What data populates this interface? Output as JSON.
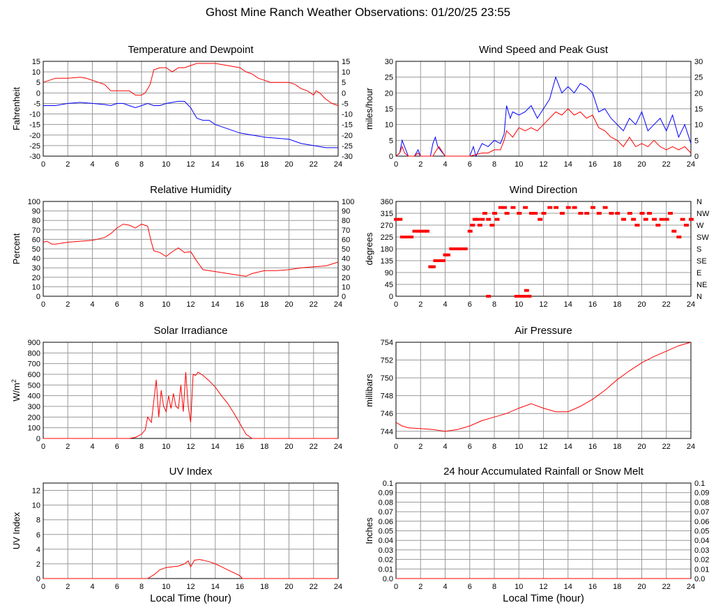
{
  "page_title": "Ghost Mine Ranch Weather Observations: 01/20/25 23:55",
  "colors": {
    "red": "#ff0000",
    "blue": "#0000ff",
    "grid": "#999999"
  },
  "chart_data": [
    {
      "type": "line",
      "title": "Temperature and Dewpoint",
      "xlabel": "",
      "ylabel": "Fahrenheit",
      "xlim": [
        0,
        24
      ],
      "ylim": [
        -30,
        15
      ],
      "xticks": [
        0,
        2,
        4,
        6,
        8,
        10,
        12,
        14,
        16,
        18,
        20,
        22,
        24
      ],
      "yticks": [
        -30,
        -25,
        -20,
        -15,
        -10,
        -5,
        0,
        5,
        10,
        15
      ],
      "right_axis": true,
      "grid": true,
      "series": [
        {
          "color": "#ff0000",
          "x": [
            0,
            0.5,
            1,
            2,
            3,
            3.5,
            4,
            5,
            5.5,
            6,
            6.5,
            7,
            7.5,
            8,
            8.3,
            8.7,
            9,
            9.5,
            10,
            10.5,
            11,
            11.5,
            12,
            12.5,
            13,
            14,
            15,
            16,
            16.5,
            17,
            17.5,
            18,
            18.5,
            19,
            20,
            20.5,
            21,
            21.5,
            22,
            22.2,
            22.5,
            23,
            23.5,
            24
          ],
          "y": [
            5,
            6,
            7,
            7,
            7.5,
            7,
            6,
            4,
            1,
            1,
            1,
            1,
            -1,
            -1,
            0,
            4,
            11,
            12,
            12,
            10,
            12,
            12,
            13,
            14,
            14,
            14,
            13,
            12,
            10,
            9,
            7,
            6,
            5,
            5,
            5,
            4,
            2,
            1,
            -1,
            1,
            0,
            -3,
            -5,
            -6
          ]
        },
        {
          "color": "#0000ff",
          "x": [
            0,
            1,
            2,
            3,
            4,
            5,
            5.5,
            6,
            6.5,
            7,
            7.5,
            8,
            8.5,
            9,
            9.5,
            10,
            11,
            11.5,
            12,
            12.5,
            13,
            13.5,
            14,
            15,
            16,
            17,
            18,
            19,
            20,
            21,
            22,
            23,
            24
          ],
          "y": [
            -6,
            -6,
            -5,
            -4.5,
            -5,
            -5.5,
            -6,
            -5,
            -5,
            -6,
            -7,
            -6,
            -5,
            -6,
            -6,
            -5,
            -4,
            -4,
            -7,
            -12,
            -13,
            -13,
            -15,
            -17,
            -19,
            -20,
            -21,
            -21.5,
            -22,
            -24,
            -25,
            -26,
            -26
          ]
        }
      ]
    },
    {
      "type": "line",
      "title": "Wind Speed and Peak Gust",
      "xlabel": "",
      "ylabel": "miles/hour",
      "xlim": [
        0,
        24
      ],
      "ylim": [
        0,
        30
      ],
      "xticks": [
        0,
        2,
        4,
        6,
        8,
        10,
        12,
        14,
        16,
        18,
        20,
        22,
        24
      ],
      "yticks": [
        0,
        5,
        10,
        15,
        20,
        25,
        30
      ],
      "right_axis": true,
      "grid": true,
      "series": [
        {
          "color": "#0000ff",
          "x": [
            0,
            0.3,
            0.5,
            0.7,
            1,
            1.5,
            1.8,
            2,
            2.8,
            3,
            3.2,
            3.4,
            4,
            5,
            6,
            6.3,
            6.5,
            7,
            7.5,
            8,
            8.5,
            8.8,
            9,
            9.3,
            9.5,
            10,
            10.5,
            11,
            11.5,
            12,
            12.5,
            13,
            13.5,
            14,
            14.5,
            15,
            15.5,
            16,
            16.5,
            17,
            17.5,
            18,
            18.5,
            19,
            19.5,
            20,
            20.5,
            21,
            21.5,
            22,
            22.5,
            23,
            23.5,
            24
          ],
          "y": [
            0,
            1,
            5,
            3,
            0,
            0,
            2,
            0,
            0,
            4,
            6,
            3,
            0,
            0,
            0,
            3,
            0,
            4,
            3,
            5,
            4,
            7,
            16,
            12,
            14,
            13,
            14,
            16,
            12,
            15,
            18,
            25,
            20,
            22,
            20,
            23,
            22,
            20,
            14,
            15,
            12,
            10,
            8,
            12,
            10,
            14,
            8,
            10,
            12,
            8,
            13,
            6,
            10,
            4
          ]
        },
        {
          "color": "#ff0000",
          "x": [
            0,
            0.3,
            0.5,
            0.7,
            1,
            1.5,
            1.8,
            2,
            3,
            3.3,
            3.5,
            4,
            6,
            7,
            7.5,
            8,
            8.5,
            8.8,
            9,
            9.5,
            10,
            10.5,
            11,
            11.5,
            12,
            12.5,
            13,
            13.5,
            14,
            14.5,
            15,
            15.5,
            16,
            16.5,
            17,
            17.5,
            18,
            18.5,
            19,
            19.5,
            20,
            20.5,
            21,
            21.5,
            22,
            22.5,
            23,
            23.5,
            24
          ],
          "y": [
            0,
            1,
            3,
            1,
            0,
            0,
            1,
            0,
            0,
            2,
            3,
            0,
            0,
            1,
            1,
            2,
            2,
            5,
            8,
            6,
            9,
            8,
            9,
            8,
            10,
            12,
            14,
            13,
            15,
            13,
            14,
            12,
            13,
            9,
            8,
            6,
            5,
            3,
            6,
            3,
            4,
            3,
            5,
            3,
            2,
            3,
            2,
            3,
            1
          ]
        }
      ]
    },
    {
      "type": "line",
      "title": "Relative Humidity",
      "xlabel": "",
      "ylabel": "Percent",
      "xlim": [
        0,
        24
      ],
      "ylim": [
        0,
        100
      ],
      "xticks": [
        0,
        2,
        4,
        6,
        8,
        10,
        12,
        14,
        16,
        18,
        20,
        22,
        24
      ],
      "yticks": [
        0,
        10,
        20,
        30,
        40,
        50,
        60,
        70,
        80,
        90,
        100
      ],
      "right_axis": true,
      "grid": true,
      "series": [
        {
          "color": "#ff0000",
          "x": [
            0,
            0.3,
            0.7,
            1,
            2,
            3,
            4,
            5,
            5.5,
            6,
            6.5,
            7,
            7.5,
            8,
            8.5,
            8.8,
            9,
            9.5,
            10,
            10.5,
            11,
            11.5,
            12,
            12.5,
            13,
            14,
            15,
            16,
            16.5,
            17,
            18,
            19,
            20,
            21,
            22,
            23,
            24
          ],
          "y": [
            57,
            58,
            55,
            55,
            57,
            58,
            59,
            62,
            66,
            72,
            76,
            75,
            72,
            76,
            74,
            57,
            48,
            46,
            42,
            47,
            51,
            46,
            47,
            37,
            28,
            26,
            24,
            22,
            21,
            24,
            27,
            27,
            28,
            30,
            31,
            32,
            36
          ]
        }
      ]
    },
    {
      "type": "scatter",
      "title": "Wind Direction",
      "xlabel": "",
      "ylabel": "degrees",
      "xlim": [
        0,
        24
      ],
      "ylim": [
        0,
        360
      ],
      "xticks": [
        0,
        2,
        4,
        6,
        8,
        10,
        12,
        14,
        16,
        18,
        20,
        22,
        24
      ],
      "yticks": [
        0,
        45,
        90,
        135,
        180,
        225,
        270,
        315,
        360
      ],
      "right_tick_labels": [
        "N",
        "NE",
        "E",
        "SE",
        "S",
        "SW",
        "W",
        "NW",
        "N"
      ],
      "grid": true,
      "series": [
        {
          "color": "#ff0000",
          "x": [
            0,
            0.3,
            0.5,
            0.8,
            1,
            1.2,
            1.5,
            1.8,
            2,
            2.3,
            2.5,
            2.8,
            3,
            3.2,
            3.5,
            3.8,
            4,
            4.2,
            4.5,
            4.8,
            5,
            5.3,
            5.6,
            6,
            6.2,
            6.4,
            6.6,
            6.8,
            7,
            7.2,
            7.5,
            7.8,
            8,
            8.2,
            8.5,
            8.8,
            9,
            9.5,
            10,
            10.5,
            11,
            11.3,
            11.7,
            12,
            12.5,
            13,
            13.5,
            14,
            14.5,
            15,
            15.5,
            16,
            16.5,
            17,
            17.5,
            18,
            18.5,
            19,
            19.3,
            19.6,
            20,
            20.3,
            20.6,
            21,
            21.3,
            21.6,
            22,
            22.3,
            22.6,
            23,
            23.3,
            23.6,
            24
          ],
          "y": [
            292,
            292,
            225,
            225,
            225,
            225,
            247,
            247,
            247,
            247,
            247,
            112,
            112,
            135,
            135,
            135,
            157,
            157,
            180,
            180,
            180,
            180,
            180,
            247,
            270,
            292,
            292,
            270,
            292,
            315,
            292,
            270,
            315,
            292,
            337,
            337,
            315,
            337,
            315,
            337,
            315,
            315,
            292,
            315,
            337,
            337,
            315,
            337,
            337,
            315,
            315,
            337,
            315,
            337,
            315,
            315,
            292,
            315,
            292,
            270,
            315,
            292,
            315,
            292,
            270,
            292,
            292,
            315,
            247,
            225,
            292,
            270,
            292
          ]
        },
        {
          "color": "#ff0000",
          "x": [
            7.5,
            9.8,
            10,
            10.2,
            10.4,
            10.6,
            10.8
          ],
          "y": [
            0,
            0,
            0,
            0,
            0,
            22,
            0
          ]
        }
      ]
    },
    {
      "type": "line",
      "title": "Solar Irradiance",
      "xlabel": "",
      "ylabel": "W/m2",
      "xlim": [
        0,
        24
      ],
      "ylim": [
        0,
        900
      ],
      "xticks": [
        0,
        2,
        4,
        6,
        8,
        10,
        12,
        14,
        16,
        18,
        20,
        22,
        24
      ],
      "yticks": [
        0,
        100,
        200,
        300,
        400,
        500,
        600,
        700,
        800,
        900
      ],
      "right_axis": false,
      "grid": true,
      "series": [
        {
          "color": "#ff0000",
          "x": [
            0,
            7,
            7.5,
            8,
            8.3,
            8.5,
            8.8,
            9,
            9.2,
            9.4,
            9.6,
            9.8,
            10,
            10.2,
            10.4,
            10.6,
            10.8,
            11,
            11.2,
            11.4,
            11.6,
            11.8,
            12,
            12.2,
            12.4,
            12.6,
            13,
            13.5,
            14,
            14.5,
            15,
            15.5,
            16,
            16.5,
            17,
            17.5,
            18,
            24
          ],
          "y": [
            0,
            0,
            10,
            40,
            80,
            200,
            150,
            350,
            550,
            200,
            450,
            300,
            250,
            400,
            280,
            420,
            300,
            280,
            500,
            250,
            620,
            300,
            150,
            600,
            590,
            620,
            590,
            540,
            480,
            400,
            330,
            240,
            140,
            40,
            0,
            0,
            0,
            0
          ]
        }
      ]
    },
    {
      "type": "line",
      "title": "Air Pressure",
      "xlabel": "",
      "ylabel": "millibars",
      "xlim": [
        0,
        24
      ],
      "ylim": [
        743.2,
        754
      ],
      "xticks": [
        0,
        2,
        4,
        6,
        8,
        10,
        12,
        14,
        16,
        18,
        20,
        22,
        24
      ],
      "yticks": [
        744,
        746,
        748,
        750,
        752,
        754
      ],
      "right_axis": false,
      "grid": true,
      "series": [
        {
          "color": "#ff0000",
          "x": [
            0,
            0.5,
            1,
            2,
            3,
            4,
            5,
            6,
            7,
            8,
            9,
            10,
            11,
            12,
            13,
            14,
            15,
            16,
            17,
            18,
            19,
            20,
            21,
            22,
            23,
            24
          ],
          "y": [
            745.0,
            744.6,
            744.4,
            744.3,
            744.2,
            744.0,
            744.2,
            744.6,
            745.2,
            745.6,
            746.0,
            746.6,
            747.1,
            746.6,
            746.2,
            746.2,
            746.8,
            747.6,
            748.6,
            749.8,
            750.8,
            751.7,
            752.4,
            753.0,
            753.6,
            754.0
          ]
        }
      ]
    },
    {
      "type": "line",
      "title": "UV Index",
      "xlabel": "Local Time (hour)",
      "ylabel": "UV Index",
      "xlim": [
        0,
        24
      ],
      "ylim": [
        0,
        13
      ],
      "xticks": [
        0,
        2,
        4,
        6,
        8,
        10,
        12,
        14,
        16,
        18,
        20,
        22,
        24
      ],
      "yticks": [
        0,
        2,
        4,
        6,
        8,
        10,
        12
      ],
      "right_axis": false,
      "grid": true,
      "series": [
        {
          "color": "#ff0000",
          "x": [
            0,
            8.5,
            9,
            9.5,
            10,
            10.5,
            11,
            11.5,
            11.8,
            12,
            12.3,
            12.7,
            13,
            13.5,
            14,
            14.5,
            15,
            15.5,
            16,
            16.2,
            24
          ],
          "y": [
            0,
            0,
            0.5,
            1.2,
            1.5,
            1.6,
            1.7,
            2.0,
            2.4,
            1.6,
            2.5,
            2.6,
            2.5,
            2.3,
            2.0,
            1.6,
            1.2,
            0.8,
            0.4,
            0,
            0
          ]
        }
      ]
    },
    {
      "type": "line",
      "title": "24 hour Accumulated Rainfall or Snow Melt",
      "xlabel": "Local Time (hour)",
      "ylabel": "Inches",
      "xlim": [
        0,
        24
      ],
      "ylim": [
        0,
        0.1
      ],
      "xticks": [
        0,
        2,
        4,
        6,
        8,
        10,
        12,
        14,
        16,
        18,
        20,
        22,
        24
      ],
      "yticks": [
        0.0,
        0.01,
        0.02,
        0.03,
        0.04,
        0.05,
        0.06,
        0.07,
        0.08,
        0.09,
        0.1
      ],
      "ytick_labels": [
        "0.0",
        "0.01",
        "0.02",
        "0.03",
        "0.04",
        "0.05",
        "0.06",
        "0.07",
        "0.08",
        "0.09",
        "0.1"
      ],
      "right_axis": true,
      "grid": true,
      "series": [
        {
          "color": "#ff0000",
          "x": [
            0,
            24
          ],
          "y": [
            0,
            0
          ]
        }
      ]
    }
  ]
}
